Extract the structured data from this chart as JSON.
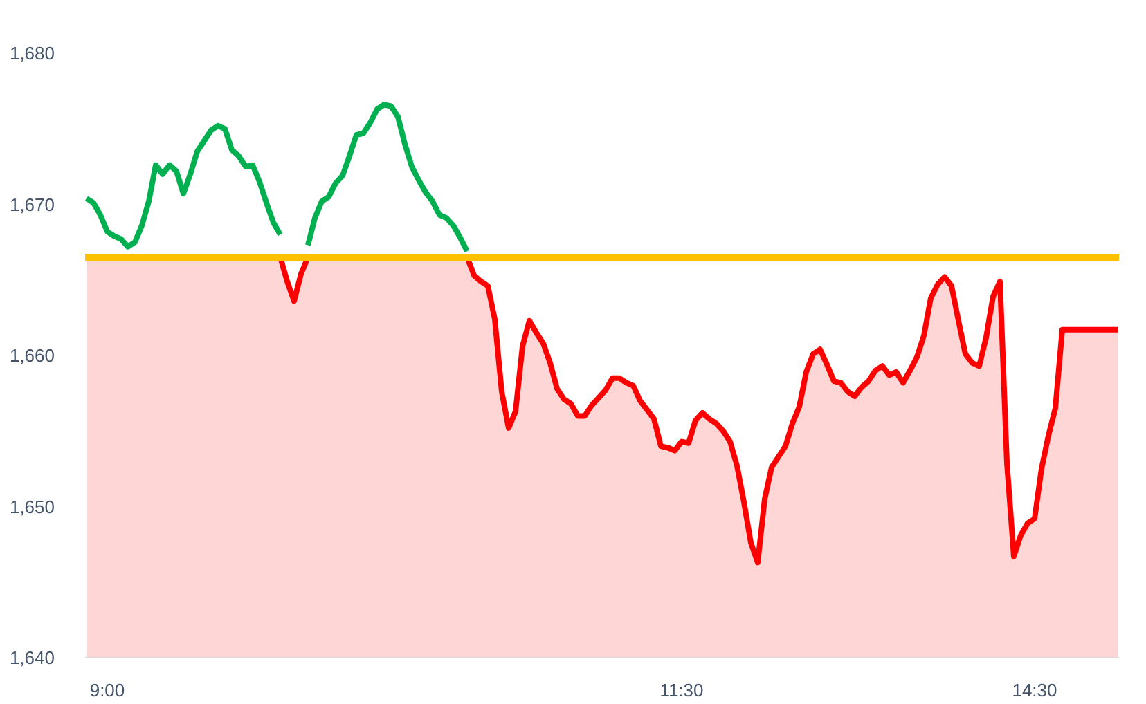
{
  "chart_data": {
    "type": "line",
    "ylim": [
      1640,
      1680
    ],
    "yticks": [
      {
        "value": 1640,
        "label": "1,640"
      },
      {
        "value": 1650,
        "label": "1,650"
      },
      {
        "value": 1660,
        "label": "1,660"
      },
      {
        "value": 1670,
        "label": "1,670"
      },
      {
        "value": 1680,
        "label": "1,680"
      }
    ],
    "categories": [
      null,
      null,
      null,
      "9:00",
      null,
      null,
      null,
      null,
      null,
      null,
      null,
      null,
      null,
      null,
      null,
      null,
      null,
      null,
      null,
      null,
      null,
      null,
      null,
      null,
      null,
      null,
      null,
      null,
      null,
      null,
      null,
      null,
      null,
      null,
      null,
      null,
      null,
      null,
      null,
      null,
      null,
      null,
      null,
      null,
      null,
      null,
      null,
      null,
      null,
      null,
      null,
      null,
      null,
      null,
      null,
      null,
      null,
      null,
      null,
      null,
      null,
      null,
      null,
      null,
      null,
      null,
      null,
      null,
      null,
      null,
      null,
      null,
      null,
      null,
      null,
      null,
      null,
      null,
      null,
      null,
      null,
      null,
      null,
      null,
      null,
      null,
      "11:30",
      null,
      null,
      null,
      null,
      null,
      null,
      null,
      null,
      null,
      null,
      null,
      null,
      null,
      null,
      null,
      null,
      null,
      null,
      null,
      null,
      null,
      null,
      null,
      null,
      null,
      null,
      null,
      null,
      null,
      null,
      null,
      null,
      null,
      null,
      null,
      null,
      null,
      null,
      null,
      null,
      null,
      null,
      null,
      null,
      null,
      null,
      null,
      null,
      null,
      null,
      "14:30",
      null,
      null,
      null,
      null,
      null,
      null,
      null,
      null,
      null,
      null,
      null,
      null
    ],
    "ref_lines": [
      {
        "axis": "y",
        "value": 1666.5,
        "color": "#ffc000"
      }
    ],
    "series": [
      {
        "type": "area",
        "color": "#ff0000",
        "values": [
          1666.5,
          1666.5,
          1666.5,
          1666.5,
          1666.5,
          1666.5,
          1666.5,
          1666.5,
          1666.5,
          1666.5,
          1666.5,
          1666.5,
          1666.5,
          1666.5,
          1666.5,
          1666.5,
          1666.5,
          1666.5,
          1666.5,
          1666.5,
          1666.5,
          1666.5,
          1666.5,
          1666.5,
          1666.5,
          1666.5,
          1666.5,
          1666.5,
          1666.5,
          1664.9,
          1663.6,
          1665.4,
          1666.5,
          1666.5,
          1666.5,
          1666.5,
          1666.5,
          1666.5,
          1666.5,
          1666.5,
          1666.5,
          1666.5,
          1666.5,
          1666.5,
          1666.5,
          1666.5,
          1666.5,
          1666.5,
          1666.5,
          1666.5,
          1666.5,
          1666.5,
          1666.5,
          1666.5,
          1666.5,
          1666.5,
          1665.3,
          1664.9,
          1664.6,
          1662.4,
          1657.6,
          1655.2,
          1656.3,
          1660.6,
          1662.3,
          1661.5,
          1660.8,
          1659.5,
          1657.8,
          1657.1,
          1656.8,
          1656.0,
          1656.0,
          1656.7,
          1657.2,
          1657.7,
          1658.5,
          1658.5,
          1658.2,
          1658.0,
          1657.0,
          1656.4,
          1655.8,
          1654.0,
          1653.9,
          1653.7,
          1654.3,
          1654.2,
          1655.7,
          1656.2,
          1655.8,
          1655.5,
          1655.0,
          1654.3,
          1652.7,
          1650.3,
          1647.6,
          1646.3,
          1650.5,
          1652.6,
          1653.3,
          1654.0,
          1655.5,
          1656.6,
          1658.9,
          1660.1,
          1660.4,
          1659.4,
          1658.3,
          1658.2,
          1657.6,
          1657.3,
          1657.9,
          1658.3,
          1659.0,
          1659.3,
          1658.7,
          1658.9,
          1658.2,
          1659.0,
          1659.9,
          1661.3,
          1663.8,
          1664.7,
          1665.2,
          1664.6,
          1662.3,
          1660.1,
          1659.5,
          1659.3,
          1661.2,
          1663.9,
          1664.9,
          1652.9,
          1646.7,
          1648.1,
          1648.9,
          1649.2,
          1652.5,
          1654.7,
          1656.5,
          1661.7,
          1661.7,
          1661.7,
          1661.7,
          1661.7,
          1661.7,
          1661.7,
          1661.7,
          1661.7
        ]
      },
      {
        "color": "#00b050",
        "values": [
          1670.4,
          1670.1,
          1669.3,
          1668.2,
          1667.9,
          1667.7,
          1667.2,
          1667.5,
          1668.6,
          1670.2,
          1672.6,
          1672.0,
          1672.6,
          1672.2,
          1670.7,
          1672.0,
          1673.5,
          1674.2,
          1674.9,
          1675.2,
          1675.0,
          1673.6,
          1673.2,
          1672.5,
          1672.6,
          1671.5,
          1670.1,
          1668.8,
          1668.0,
          null,
          null,
          null,
          1667.3,
          1669.1,
          1670.2,
          1670.5,
          1671.4,
          1671.9,
          1673.2,
          1674.6,
          1674.7,
          1675.4,
          1676.3,
          1676.6,
          1676.5,
          1675.8,
          1674.0,
          1672.5,
          1671.6,
          1670.8,
          1670.2,
          1669.3,
          1669.1,
          1668.6,
          1667.8,
          1666.9,
          null,
          null,
          null,
          null,
          null,
          null,
          null,
          null,
          null,
          null,
          null,
          null,
          null,
          null,
          null,
          null,
          null,
          null,
          null,
          null,
          null,
          null,
          null,
          null,
          null,
          null,
          null,
          null,
          null,
          null,
          null,
          null,
          null,
          null,
          null,
          null,
          null,
          null,
          null,
          null,
          null,
          null,
          null,
          null,
          null,
          null,
          null,
          null,
          null,
          null,
          null,
          null,
          null,
          null,
          null,
          null,
          null,
          null,
          null,
          null,
          null,
          null,
          null,
          null,
          null,
          null,
          null,
          null,
          null,
          null,
          null,
          null,
          null,
          null,
          null,
          null,
          null,
          null,
          null,
          null,
          null,
          null,
          null,
          null,
          null,
          null,
          null,
          null,
          null,
          null,
          null,
          null,
          null,
          null
        ]
      }
    ]
  }
}
